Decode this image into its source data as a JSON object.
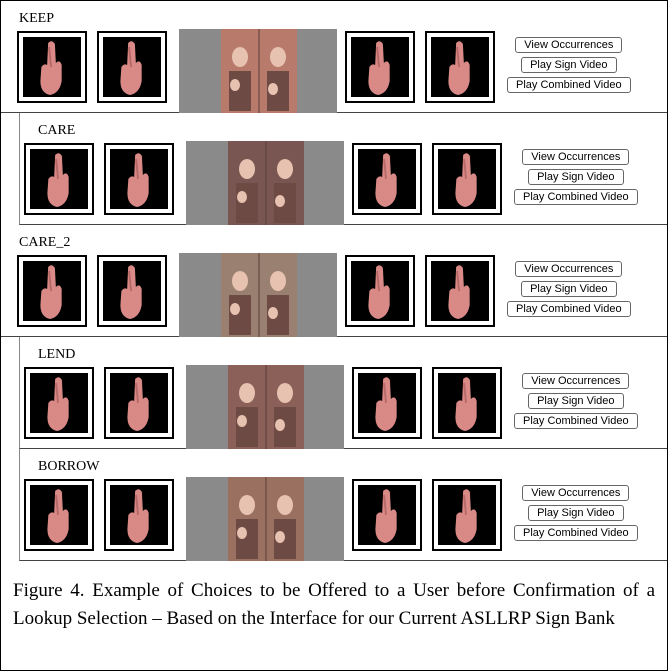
{
  "rows": [
    {
      "label": "KEEP"
    },
    {
      "label": "CARE"
    },
    {
      "label": "CARE_2"
    },
    {
      "label": "LEND"
    },
    {
      "label": "BORROW"
    }
  ],
  "buttons": [
    "View Occurrences",
    "Play Sign Video",
    "Play Combined Video"
  ],
  "caption": "Figure 4. Example of Choices to be Offered to a User before Confirmation of a Lookup Selection – Based on the Interface for our Current ASLLRP Sign Bank"
}
